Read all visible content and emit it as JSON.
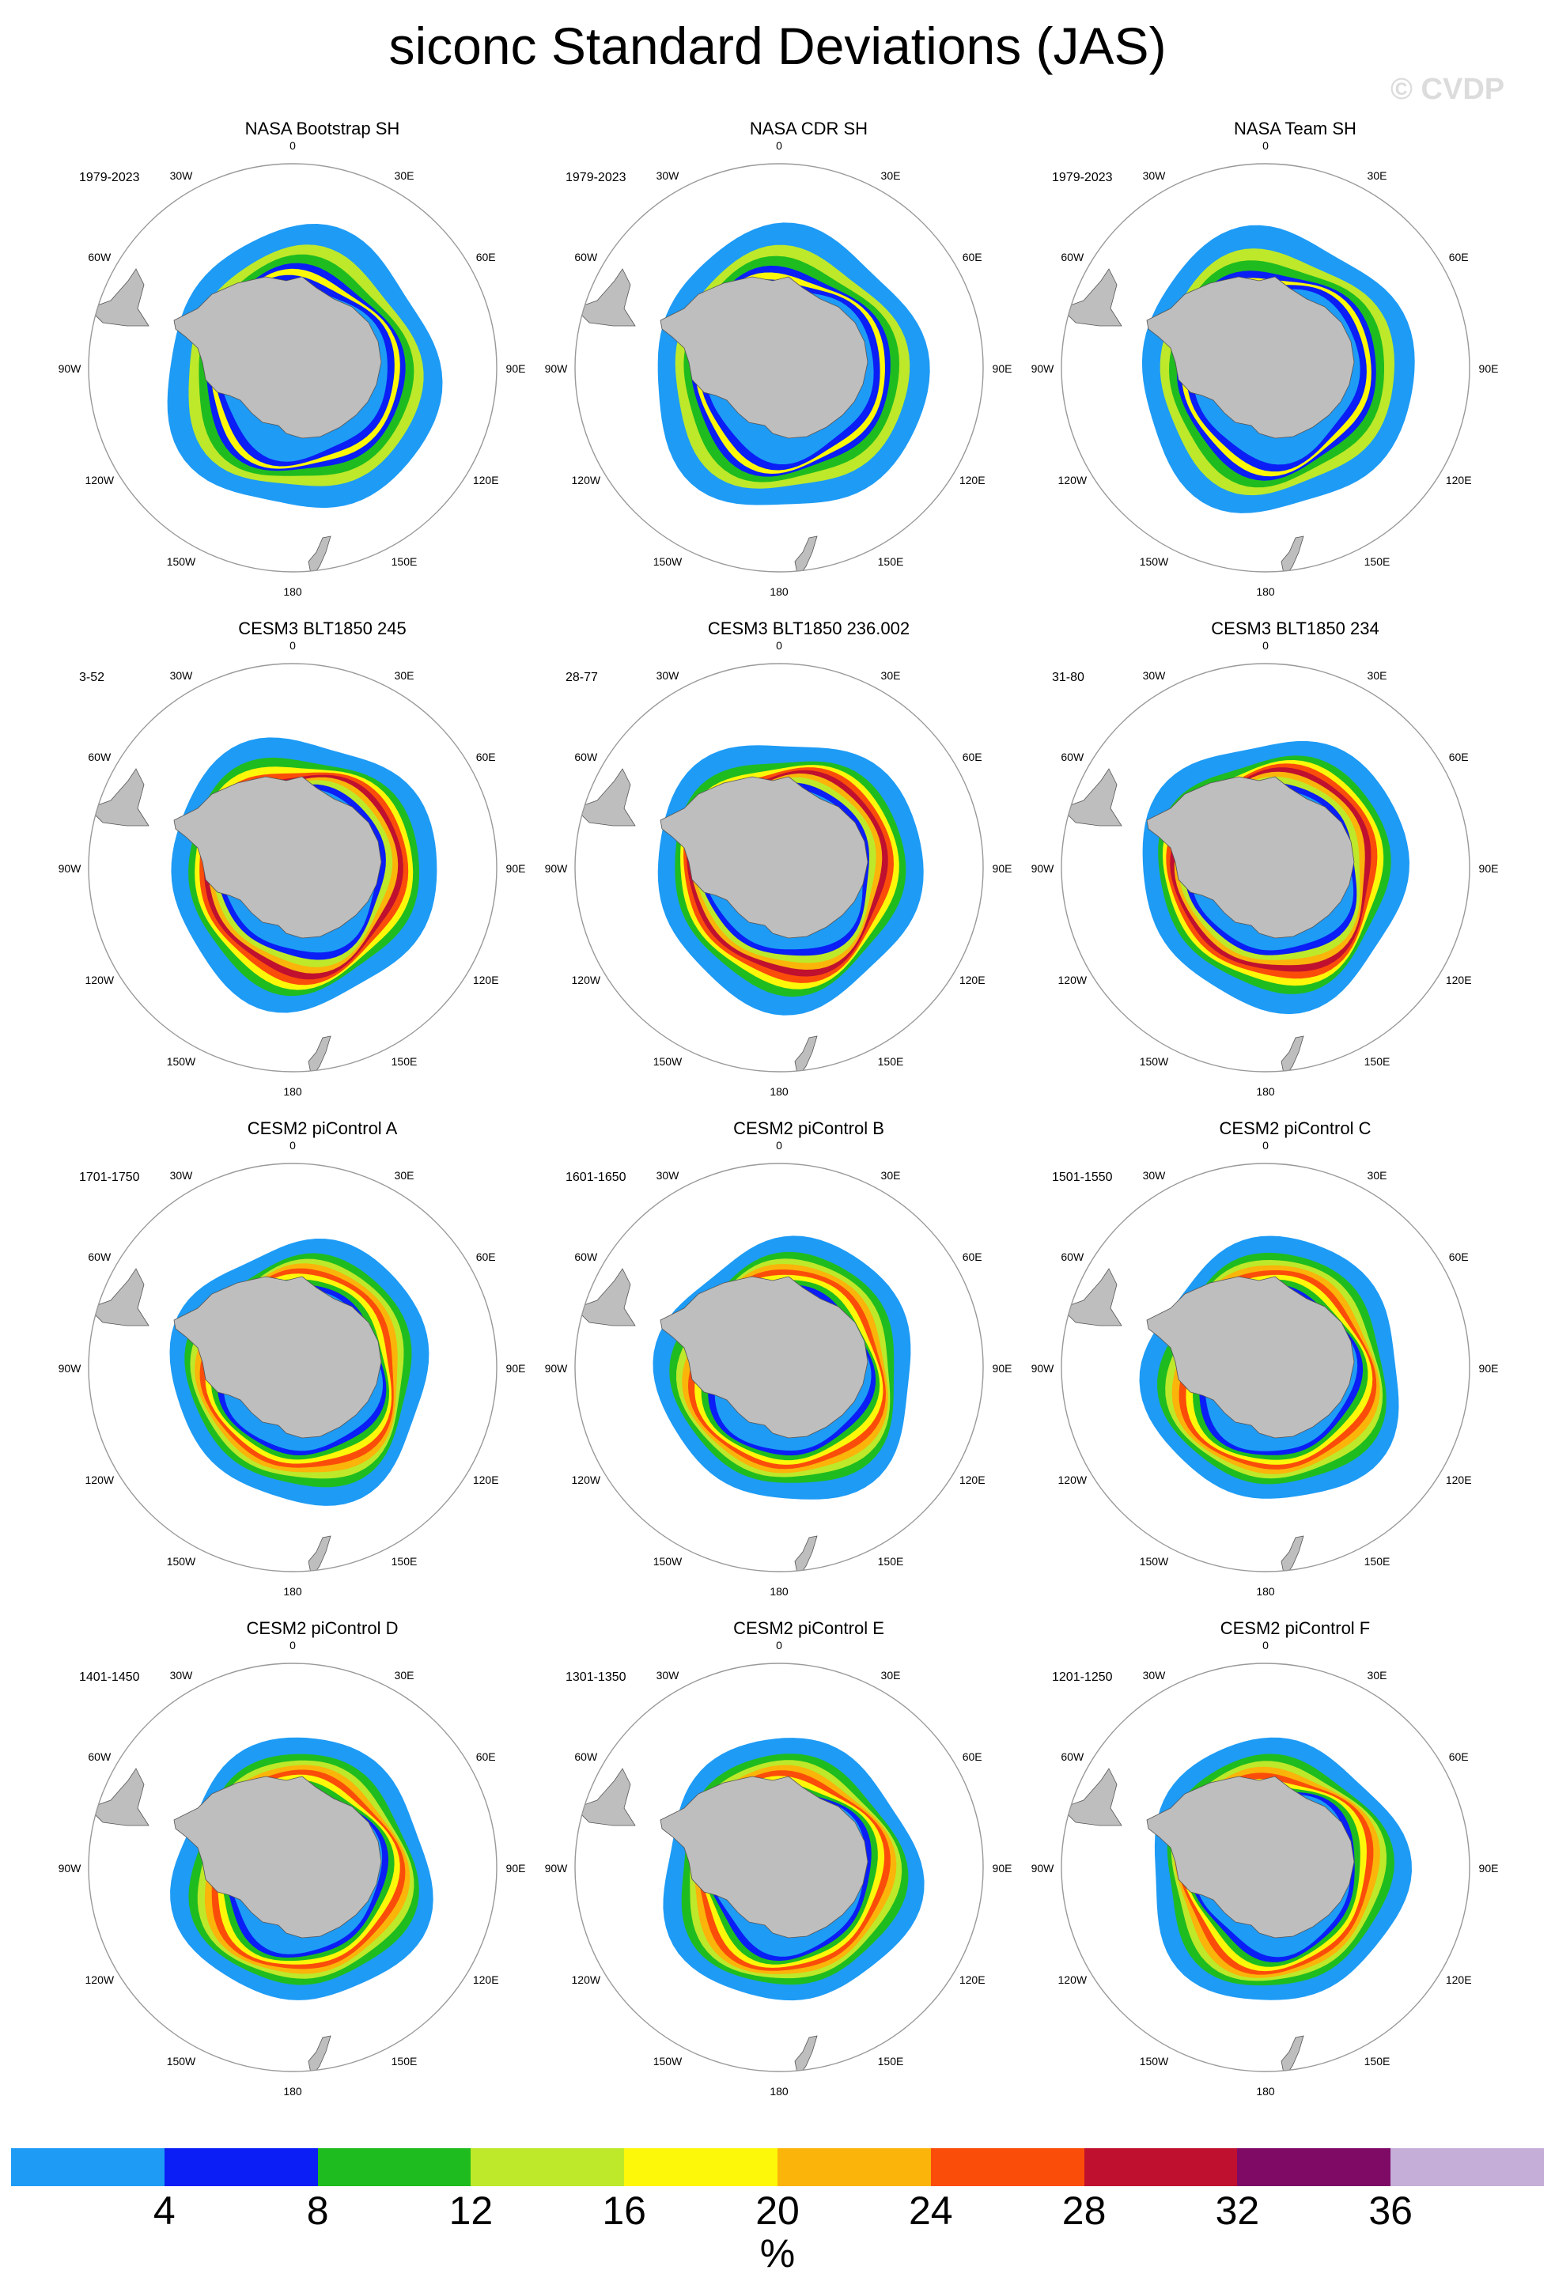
{
  "title": "siconc Standard Deviations (JAS)",
  "watermark": "© CVDP",
  "panels": [
    {
      "title": "NASA Bootstrap SH",
      "years": "1979-2023",
      "style": "obs"
    },
    {
      "title": "NASA CDR SH",
      "years": "1979-2023",
      "style": "obs"
    },
    {
      "title": "NASA Team SH",
      "years": "1979-2023",
      "style": "obs"
    },
    {
      "title": "CESM3 BLT1850 245",
      "years": "3-52",
      "style": "model_high"
    },
    {
      "title": "CESM3 BLT1850 236.002",
      "years": "28-77",
      "style": "model_high"
    },
    {
      "title": "CESM3 BLT1850 234",
      "years": "31-80",
      "style": "model_high"
    },
    {
      "title": "CESM2 piControl A",
      "years": "1701-1750",
      "style": "model"
    },
    {
      "title": "CESM2 piControl B",
      "years": "1601-1650",
      "style": "model"
    },
    {
      "title": "CESM2 piControl C",
      "years": "1501-1550",
      "style": "model"
    },
    {
      "title": "CESM2 piControl D",
      "years": "1401-1450",
      "style": "model"
    },
    {
      "title": "CESM2 piControl E",
      "years": "1301-1350",
      "style": "model"
    },
    {
      "title": "CESM2 piControl F",
      "years": "1201-1250",
      "style": "model"
    }
  ],
  "lon_labels": [
    "0",
    "30E",
    "60E",
    "90E",
    "120E",
    "150E",
    "180",
    "150W",
    "120W",
    "90W",
    "60W",
    "30W"
  ],
  "colorbar": {
    "colors": [
      "#1e9bf5",
      "#0a1ef5",
      "#1fbc1f",
      "#bde92a",
      "#fdf70a",
      "#fbb40a",
      "#fb4d0a",
      "#c0102f",
      "#7e0a66",
      "#c5aed8"
    ],
    "labels": [
      "4",
      "8",
      "12",
      "16",
      "20",
      "24",
      "28",
      "32",
      "36"
    ],
    "units": "%"
  },
  "map_colors": {
    "land": "#bebebe",
    "coast": "#555555",
    "frame": "#999999"
  }
}
